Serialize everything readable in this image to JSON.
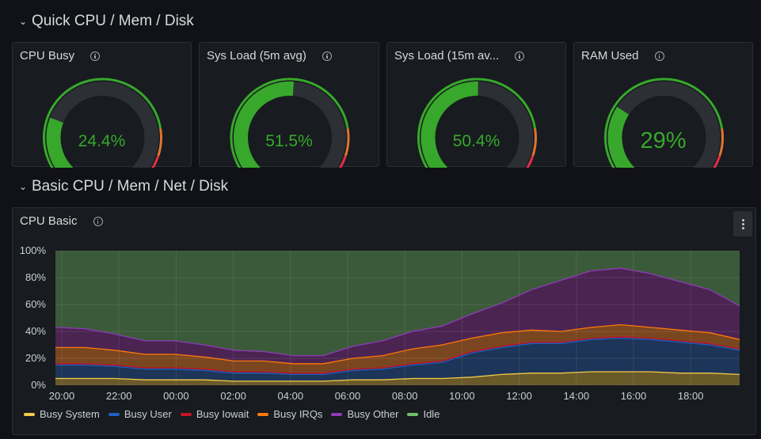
{
  "rows": [
    {
      "title": "Quick CPU / Mem / Disk"
    },
    {
      "title": "Basic CPU / Mem / Net / Disk"
    }
  ],
  "gauges": [
    {
      "title": "CPU Busy",
      "value_text": "24.4%",
      "fraction": 0.244
    },
    {
      "title": "Sys Load (5m avg)",
      "value_text": "51.5%",
      "fraction": 0.515
    },
    {
      "title": "Sys Load (15m av...",
      "value_text": "50.4%",
      "fraction": 0.504
    },
    {
      "title": "RAM Used",
      "value_text": "29%",
      "fraction": 0.29
    }
  ],
  "colors": {
    "gauge_fill": "#37a82b",
    "gauge_track": "#2c2f34",
    "threshold_green": "#37a82b",
    "threshold_orange": "#e0752d",
    "threshold_red": "#e02f44",
    "idle_area": "#3b5a3a"
  },
  "cpu_panel": {
    "title": "CPU Basic",
    "menu_icon": "kebab-menu-icon"
  },
  "chart_data": {
    "type": "area",
    "stacked": true,
    "title": "CPU Basic",
    "yticks": [
      "0%",
      "20%",
      "40%",
      "60%",
      "80%",
      "100%"
    ],
    "ylim": [
      0,
      100
    ],
    "xticks": [
      "20:00",
      "22:00",
      "00:00",
      "02:00",
      "04:00",
      "06:00",
      "08:00",
      "10:00",
      "12:00",
      "14:00",
      "16:00",
      "18:00"
    ],
    "grid": true,
    "legend_position": "bottom",
    "x": [
      "20:00",
      "21:00",
      "22:00",
      "23:00",
      "00:00",
      "01:00",
      "02:00",
      "03:00",
      "04:00",
      "05:00",
      "06:00",
      "07:00",
      "08:00",
      "09:00",
      "10:00",
      "11:00",
      "12:00",
      "13:00",
      "14:00",
      "15:00",
      "16:00",
      "17:00",
      "18:00",
      "19:00"
    ],
    "series": [
      {
        "name": "Busy System",
        "color": "#f2c94c",
        "values": [
          5,
          5,
          5,
          4,
          4,
          4,
          3,
          3,
          3,
          3,
          4,
          4,
          5,
          5,
          6,
          8,
          9,
          9,
          10,
          10,
          10,
          9,
          9,
          8
        ]
      },
      {
        "name": "Busy User",
        "color": "#1f60c4",
        "values": [
          10,
          10,
          9,
          8,
          8,
          7,
          6,
          6,
          5,
          5,
          7,
          8,
          10,
          12,
          18,
          20,
          22,
          22,
          24,
          25,
          24,
          23,
          21,
          18
        ]
      },
      {
        "name": "Busy Iowait",
        "color": "#c4162a",
        "values": [
          1,
          1,
          1,
          1,
          1,
          1,
          1,
          1,
          1,
          1,
          1,
          1,
          1,
          1,
          1,
          1,
          1,
          1,
          1,
          1,
          1,
          1,
          1,
          1
        ]
      },
      {
        "name": "Busy IRQs",
        "color": "#ff780a",
        "values": [
          12,
          12,
          11,
          10,
          10,
          9,
          8,
          8,
          7,
          7,
          8,
          9,
          11,
          12,
          10,
          10,
          9,
          8,
          8,
          9,
          8,
          8,
          8,
          7
        ]
      },
      {
        "name": "Busy Other",
        "color": "#8f3bb8",
        "values": [
          15,
          14,
          12,
          10,
          10,
          9,
          8,
          7,
          6,
          6,
          9,
          11,
          13,
          14,
          18,
          22,
          30,
          38,
          42,
          42,
          40,
          36,
          32,
          25
        ]
      },
      {
        "name": "Idle",
        "color": "#73bf69",
        "values": [
          57,
          58,
          62,
          67,
          67,
          70,
          74,
          75,
          78,
          78,
          71,
          67,
          60,
          56,
          47,
          39,
          29,
          22,
          15,
          13,
          17,
          23,
          29,
          41
        ]
      }
    ]
  }
}
